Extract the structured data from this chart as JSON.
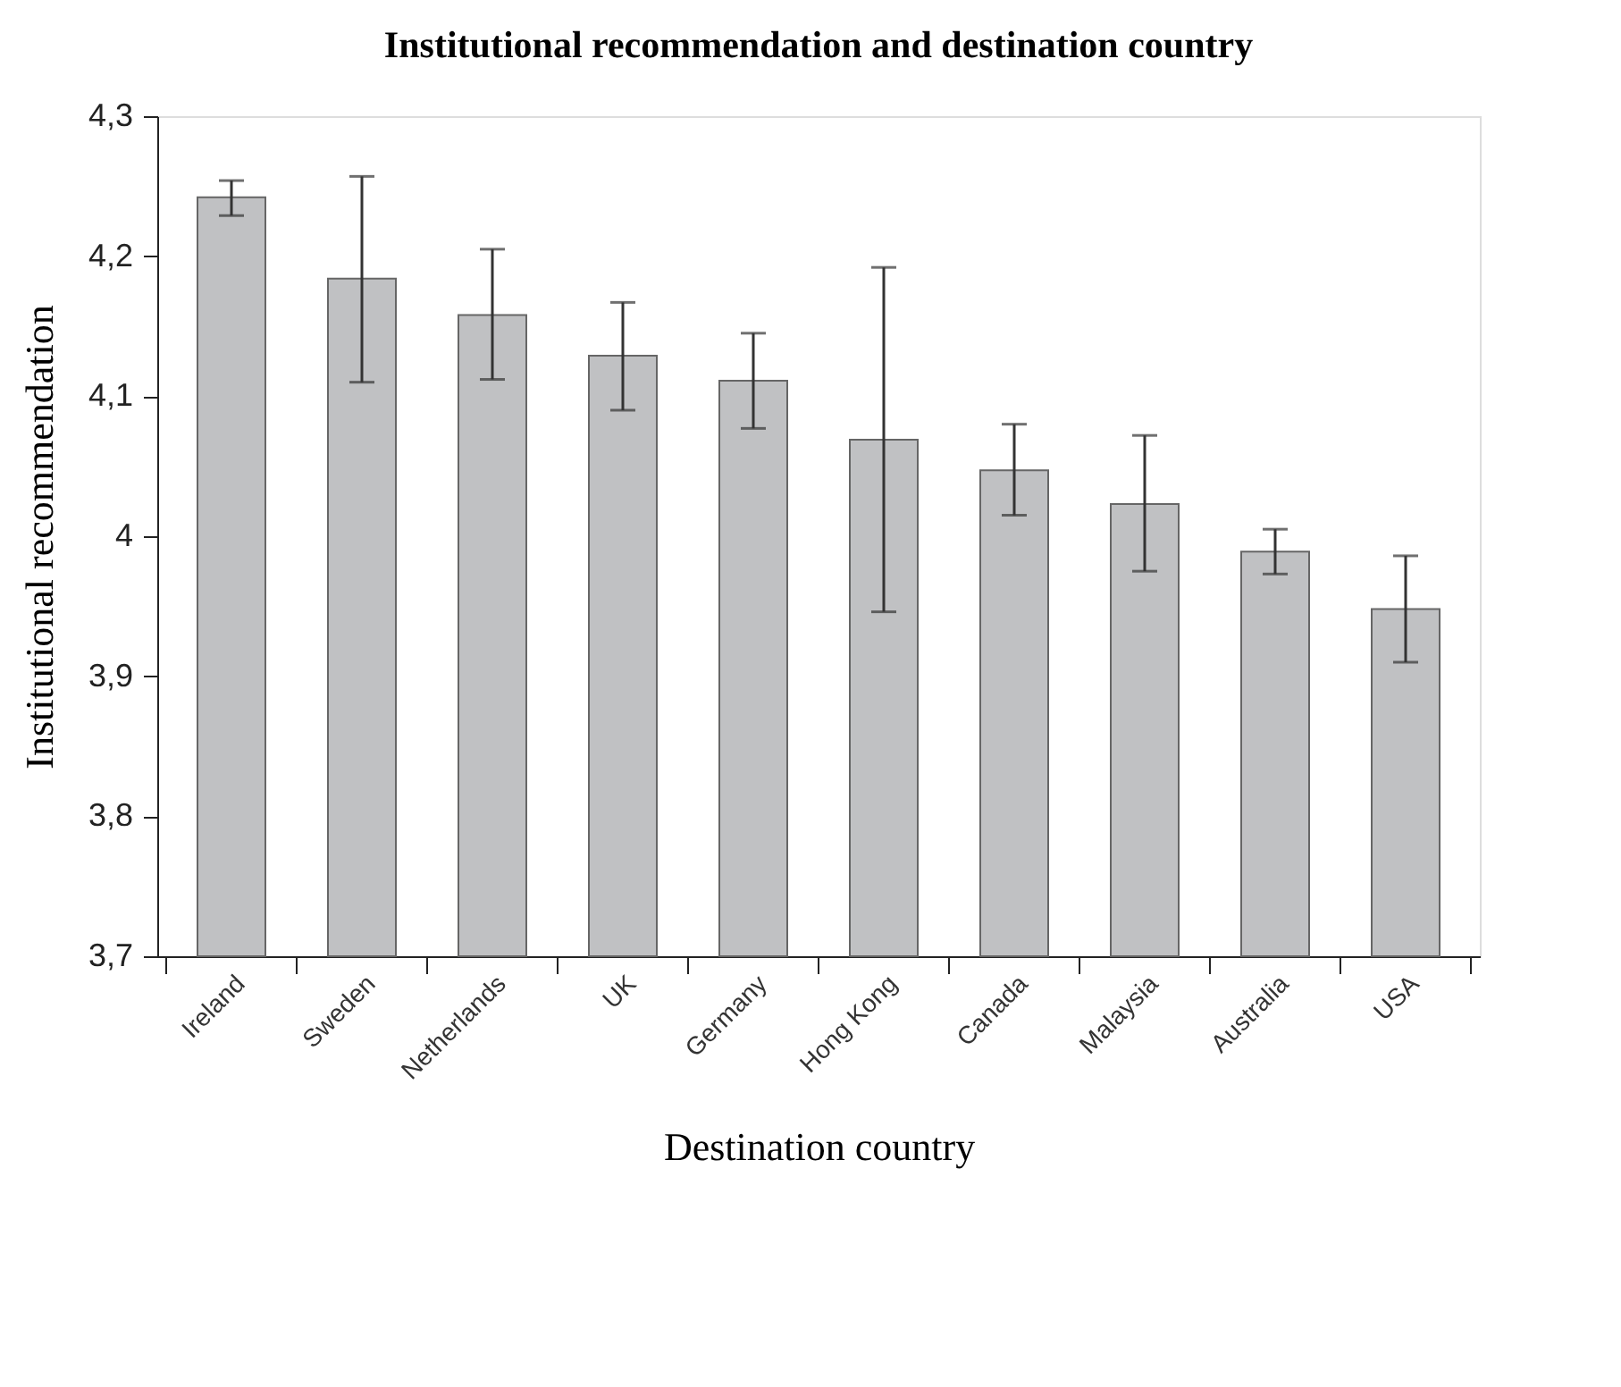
{
  "chart_data": {
    "type": "bar",
    "title": "Institutional recommendation and destination country",
    "xlabel": "Destination country",
    "ylabel": "Institutional recommendation",
    "categories": [
      "Ireland",
      "Sweden",
      "Netherlands",
      "UK",
      "Germany",
      "Hong Kong",
      "Canada",
      "Malaysia",
      "Australia",
      "USA"
    ],
    "values": [
      4.242,
      4.184,
      4.158,
      4.129,
      4.111,
      4.069,
      4.047,
      4.023,
      3.989,
      3.948
    ],
    "errors": [
      [
        4.229,
        4.254
      ],
      [
        4.11,
        4.257
      ],
      [
        4.112,
        4.205
      ],
      [
        4.09,
        4.167
      ],
      [
        4.077,
        4.145
      ],
      [
        3.946,
        4.192
      ],
      [
        4.015,
        4.08
      ],
      [
        3.975,
        4.072
      ],
      [
        3.973,
        4.005
      ],
      [
        3.91,
        3.986
      ]
    ],
    "color": "#c0c1c3",
    "ylim": [
      3.7,
      4.3
    ],
    "yticks": [
      {
        "value": 3.7,
        "label": "3,7"
      },
      {
        "value": 3.8,
        "label": "3,8"
      },
      {
        "value": 3.9,
        "label": "3,9"
      },
      {
        "value": 4.0,
        "label": "4"
      },
      {
        "value": 4.1,
        "label": "4,1"
      },
      {
        "value": 4.2,
        "label": "4,2"
      },
      {
        "value": 4.3,
        "label": "4,3"
      }
    ],
    "grid": false
  }
}
